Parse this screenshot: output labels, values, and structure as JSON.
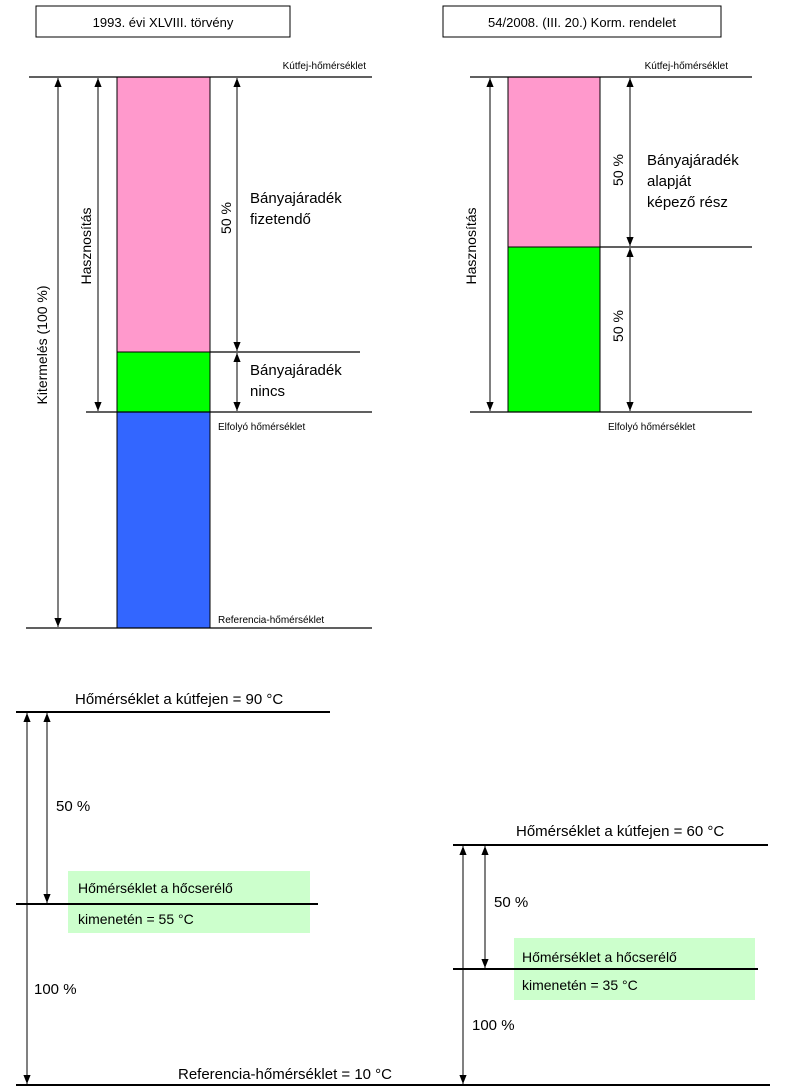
{
  "top_left": {
    "title": "1993. évi XLVIII. törvény",
    "label_wellhead": "Kútfej-hőmérséklet",
    "label_outflow": "Elfolyó hőmérséklet",
    "label_reference": "Referencia-hőmérséklet",
    "label_extraction": "Kitermelés (100 %)",
    "label_utilization": "Hasznosítás",
    "label_percent": "50 %",
    "label_royalty_payable": [
      "Bányajáradék",
      "fizetendő"
    ],
    "label_royalty_none": [
      "Bányajáradék",
      "nincs"
    ],
    "colors": {
      "pink": "#ff99cc",
      "green": "#00ff00",
      "blue": "#3366ff"
    }
  },
  "top_right": {
    "title": "54/2008. (III. 20.) Korm. rendelet",
    "label_wellhead": "Kútfej-hőmérséklet",
    "label_outflow": "Elfolyó hőmérséklet",
    "label_utilization": "Hasznosítás",
    "label_percent_upper": "50 %",
    "label_percent_lower": "50 %",
    "label_royalty_base": [
      "Bányajáradék",
      "alapját",
      "képező rész"
    ],
    "colors": {
      "pink": "#ff99cc",
      "green": "#00ff00"
    }
  },
  "bottom_left": {
    "wellhead": "Hőmérséklet a kútfejen = 90 °C",
    "exchanger": [
      "Hőmérséklet a hőcserélő",
      "kimenetén = 55 °C"
    ],
    "percent_50": "50 %",
    "percent_100": "100 %",
    "highlight_color": "#ccffcc"
  },
  "bottom_right": {
    "wellhead": "Hőmérséklet a kútfejen = 60 °C",
    "exchanger": [
      "Hőmérséklet a hőcserélő",
      "kimenetén = 35 °C"
    ],
    "percent_50": "50 %",
    "percent_100": "100 %",
    "highlight_color": "#ccffcc"
  },
  "reference_bottom": "Referencia-hőmérséklet = 10 °C"
}
